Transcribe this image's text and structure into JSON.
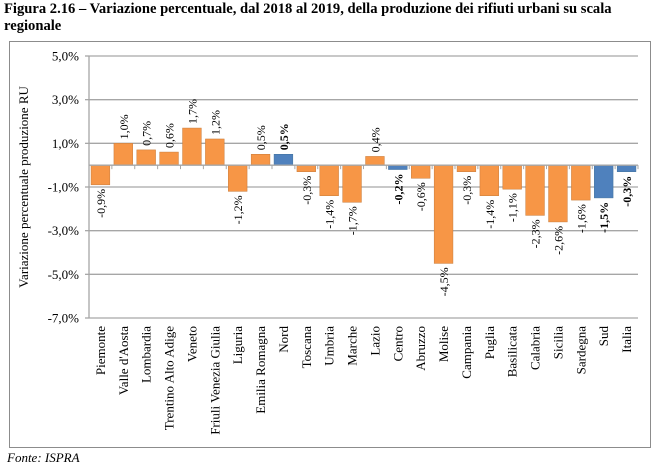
{
  "figure": {
    "title": "Figura 2.16 – Variazione percentuale, dal 2018 al 2019, della produzione dei rifiuti urbani su scala regionale",
    "source": "Fonte: ISPRA"
  },
  "colors": {
    "region": "#F79646",
    "macro_area": "#4F81BD",
    "grid": "#a6a6a6",
    "frame": "#8c8c8c"
  },
  "chart_data": {
    "type": "bar",
    "title": "Figura 2.16 – Variazione percentuale, dal 2018 al 2019, della produzione dei rifiuti urbani su scala regionale",
    "xlabel": "",
    "ylabel": "Variazione percentuale produzione RU",
    "ylim": [
      -7.0,
      5.0
    ],
    "yticks": [
      5.0,
      3.0,
      1.0,
      -1.0,
      -3.0,
      -5.0,
      -7.0
    ],
    "ytick_labels": [
      "5,0%",
      "3,0%",
      "1,0%",
      "-1,0%",
      "-3,0%",
      "-5,0%",
      "-7,0%"
    ],
    "grid": true,
    "legend": "none",
    "categories": [
      "Piemonte",
      "Valle d'Aosta",
      "Lombardia",
      "Trentino Alto Adige",
      "Veneto",
      "Friuli Venezia Giulia",
      "Liguria",
      "Emilia Romagna",
      "Nord",
      "Toscana",
      "Umbria",
      "Marche",
      "Lazio",
      "Centro",
      "Abruzzo",
      "Molise",
      "Campania",
      "Puglia",
      "Basilicata",
      "Calabria",
      "Sicilia",
      "Sardegna",
      "Sud",
      "Italia"
    ],
    "values": [
      -0.9,
      1.0,
      0.7,
      0.6,
      1.7,
      1.2,
      -1.2,
      0.5,
      0.5,
      -0.3,
      -1.4,
      -1.7,
      0.4,
      -0.2,
      -0.6,
      -4.5,
      -0.3,
      -1.4,
      -1.1,
      -2.3,
      -2.6,
      -1.6,
      -1.5,
      -0.3
    ],
    "data_labels": [
      "-0,9%",
      "1,0%",
      "0,7%",
      "0,6%",
      "1,7%",
      "1,2%",
      "-1,2%",
      "0,5%",
      "0,5%",
      "-0,3%",
      "-1,4%",
      "-1,7%",
      "0,4%",
      "-0,2%",
      "-0,6%",
      "-4,5%",
      "-0,3%",
      "-1,4%",
      "-1,1%",
      "-2,3%",
      "-2,6%",
      "-1,6%",
      "-1,5%",
      "-0,3%"
    ],
    "aggregate": [
      false,
      false,
      false,
      false,
      false,
      false,
      false,
      false,
      true,
      false,
      false,
      false,
      false,
      true,
      false,
      false,
      false,
      false,
      false,
      false,
      false,
      false,
      true,
      true
    ],
    "unit": "%"
  }
}
